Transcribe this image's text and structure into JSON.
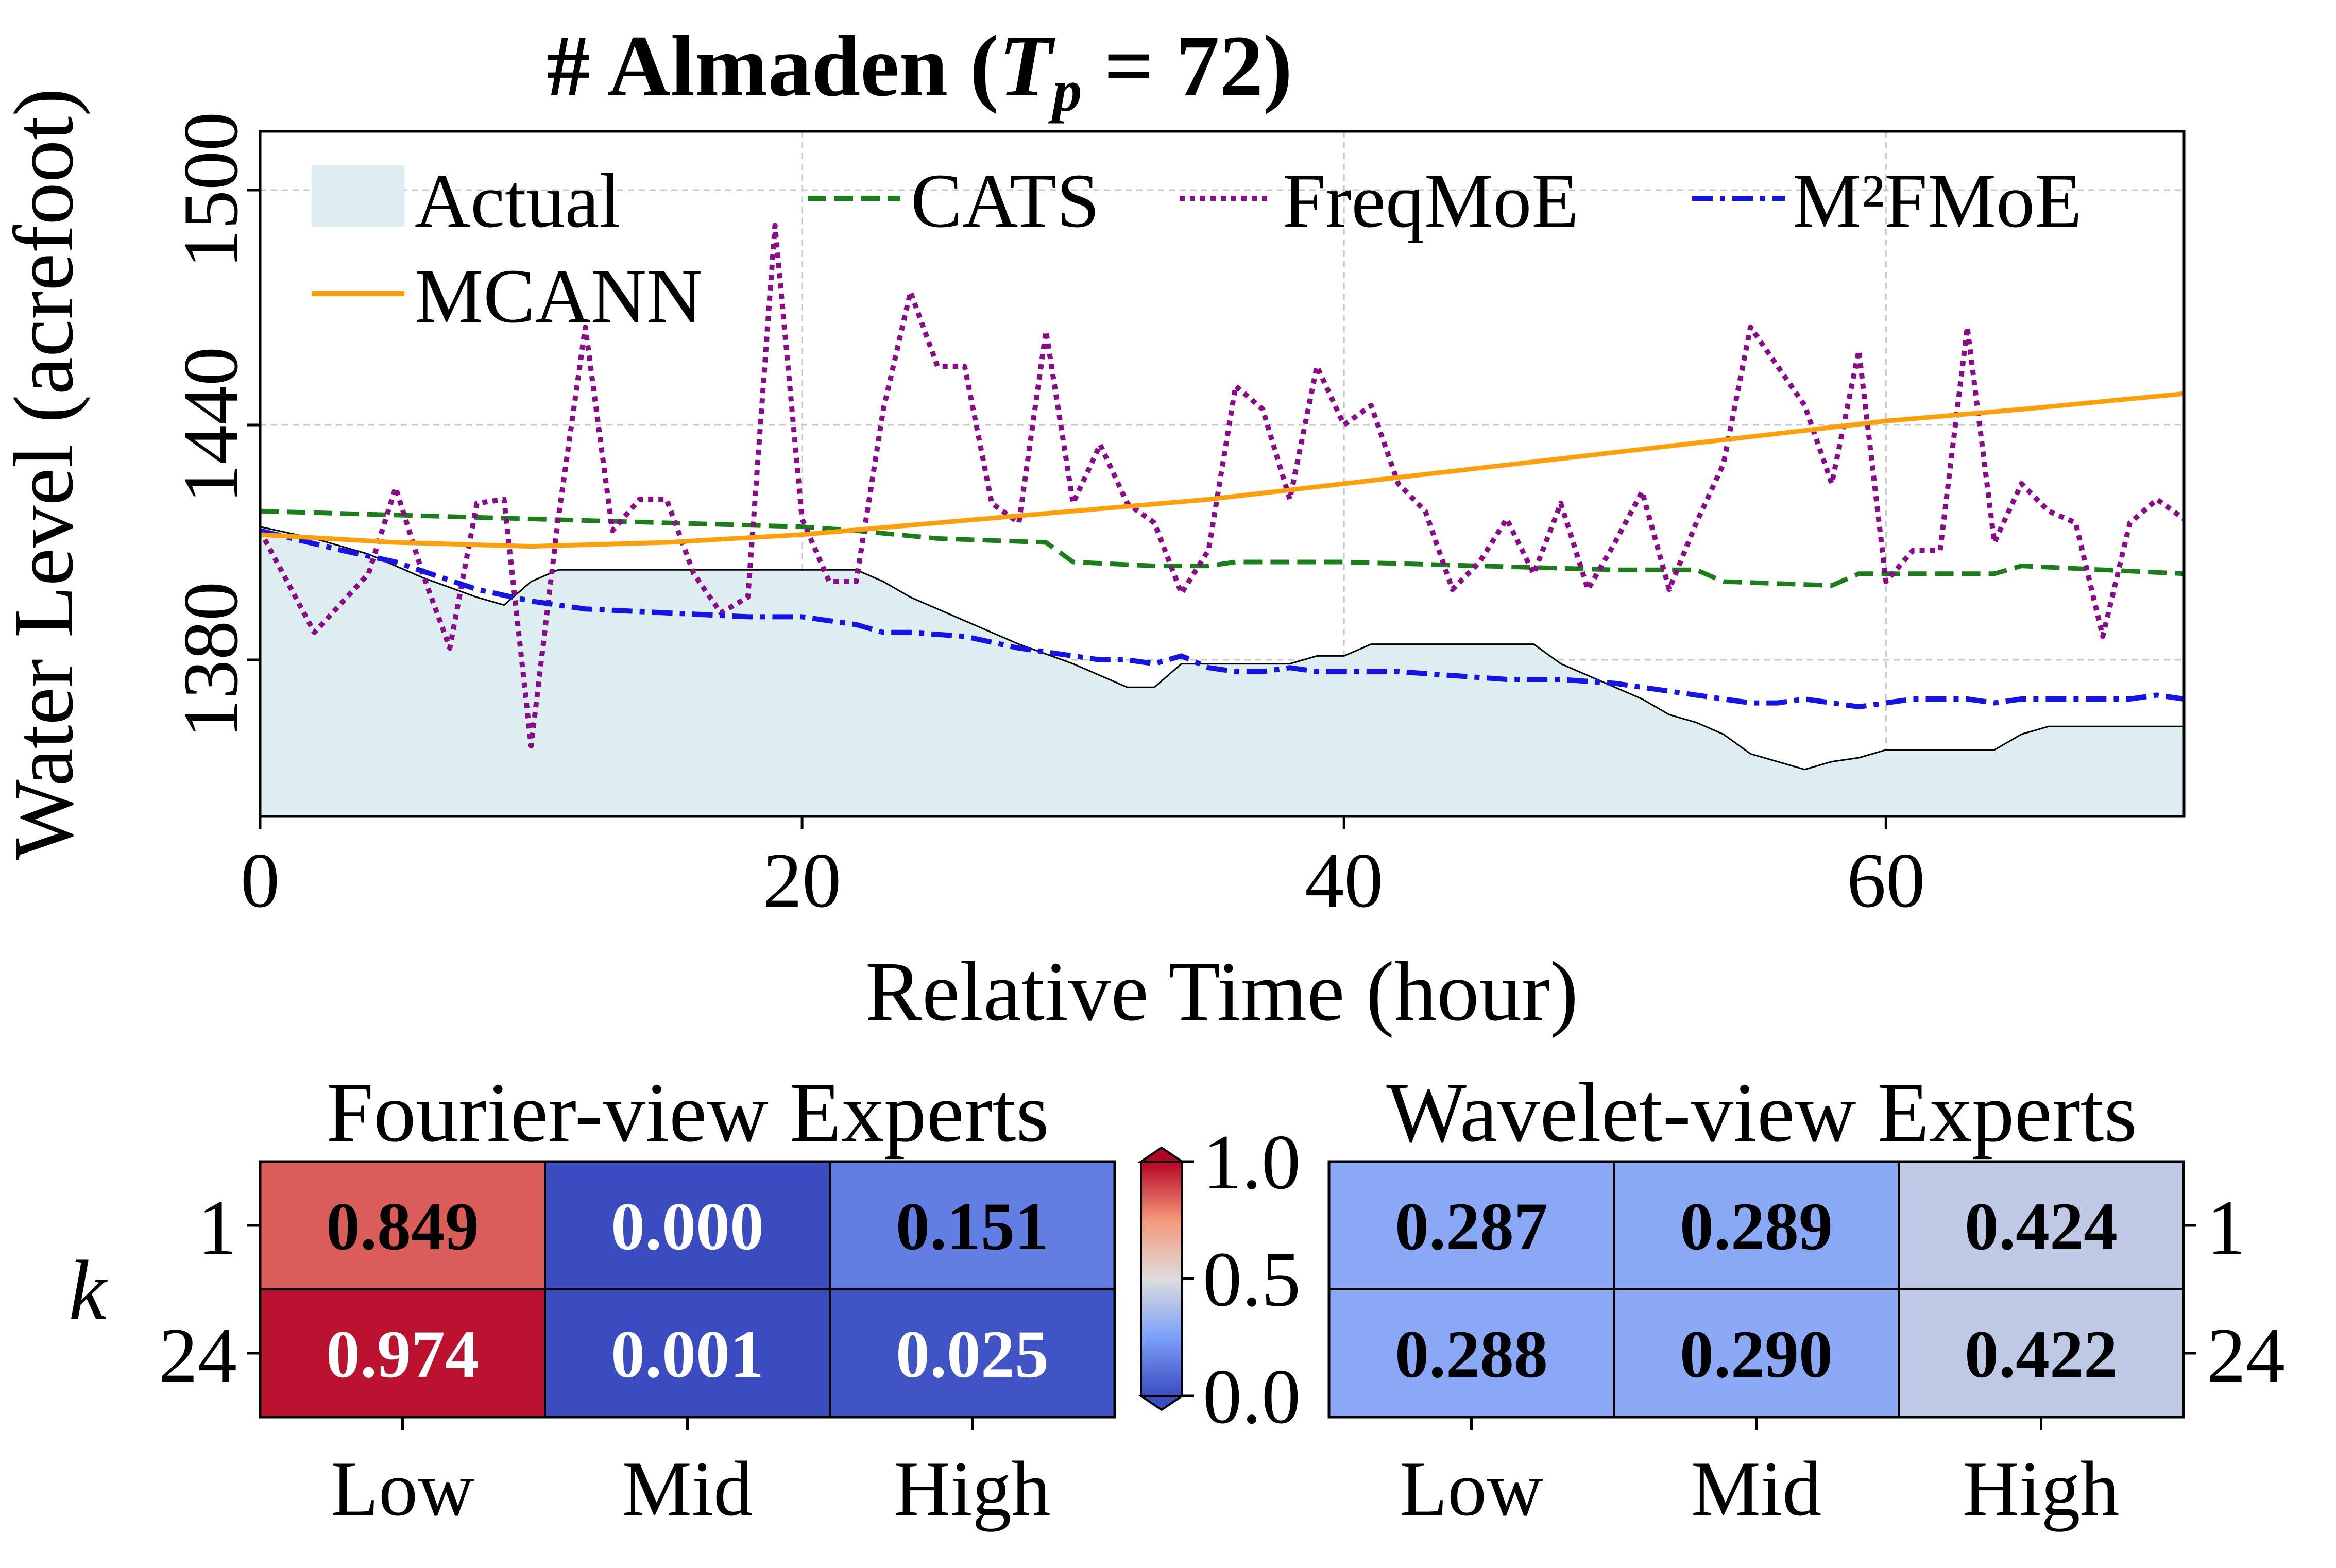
{
  "chart_data": [
    {
      "type": "line",
      "title_prefix": "# Almaden (",
      "title_var": "T",
      "title_sub": "p",
      "title_rest": " = 72)",
      "xlabel": "Relative Time (hour)",
      "ylabel": "Water Level (acrefoot)",
      "xlim": [
        0,
        71
      ],
      "ylim": [
        1340,
        1515
      ],
      "xticks": [
        0,
        20,
        40,
        60
      ],
      "yticks": [
        1380,
        1440,
        1500
      ],
      "grid": true,
      "legend_position": "top",
      "series": [
        {
          "name": "Actual",
          "style": "filled-area",
          "color": "#deedf0",
          "x": [
            0,
            2,
            4,
            6,
            8,
            9,
            10,
            11,
            12,
            14,
            16,
            18,
            20,
            22,
            23,
            24,
            26,
            28,
            30,
            32,
            33,
            34,
            35,
            36,
            37,
            38,
            39,
            40,
            41,
            42,
            44,
            46,
            47,
            48,
            49,
            50,
            51,
            52,
            53,
            54,
            55,
            56,
            57,
            58,
            59,
            60,
            61,
            62,
            63,
            64,
            65,
            66,
            68,
            70,
            71
          ],
          "y": [
            1414,
            1411,
            1407,
            1401,
            1396,
            1394,
            1400,
            1403,
            1403,
            1403,
            1403,
            1403,
            1403,
            1403,
            1400,
            1396,
            1390,
            1384,
            1379,
            1373,
            1373,
            1379,
            1379,
            1379,
            1379,
            1379,
            1381,
            1381,
            1384,
            1384,
            1384,
            1384,
            1384,
            1379,
            1376,
            1373,
            1370,
            1366,
            1364,
            1361,
            1356,
            1354,
            1352,
            1354,
            1355,
            1357,
            1357,
            1357,
            1357,
            1357,
            1361,
            1363,
            1363,
            1363,
            1363
          ]
        },
        {
          "name": "CATS",
          "style": "dashed",
          "color": "#1a7f1a",
          "x": [
            0,
            5,
            10,
            15,
            20,
            22,
            25,
            29,
            30,
            33,
            35,
            36,
            40,
            45,
            50,
            53,
            54,
            58,
            59,
            64,
            65,
            71
          ],
          "y": [
            1418,
            1417,
            1416,
            1415,
            1414,
            1413,
            1411,
            1410,
            1405,
            1404,
            1404,
            1405,
            1405,
            1404,
            1403,
            1403,
            1400,
            1399,
            1402,
            1402,
            1404,
            1402
          ]
        },
        {
          "name": "FreqMoE",
          "style": "dotted",
          "color": "#8b0a8b",
          "x": [
            0,
            2,
            4,
            5,
            6,
            7,
            8,
            9,
            10,
            11,
            12,
            13,
            14,
            15,
            16,
            17,
            18,
            19,
            20,
            21,
            22,
            23,
            24,
            25,
            26,
            27,
            28,
            29,
            30,
            31,
            32,
            33,
            34,
            35,
            36,
            37,
            38,
            39,
            40,
            41,
            42,
            43,
            44,
            45,
            46,
            47,
            48,
            49,
            50,
            51,
            52,
            53,
            54,
            55,
            56,
            57,
            58,
            59,
            60,
            61,
            62,
            63,
            64,
            65,
            66,
            67,
            68,
            69,
            70,
            71
          ],
          "y": [
            1413,
            1387,
            1402,
            1424,
            1402,
            1383,
            1420,
            1421,
            1358,
            1416,
            1465,
            1413,
            1421,
            1421,
            1402,
            1392,
            1396,
            1491,
            1416,
            1400,
            1400,
            1444,
            1474,
            1455,
            1455,
            1420,
            1415,
            1464,
            1420,
            1435,
            1420,
            1415,
            1397,
            1408,
            1450,
            1444,
            1421,
            1455,
            1440,
            1445,
            1425,
            1418,
            1398,
            1405,
            1416,
            1402,
            1420,
            1398,
            1410,
            1423,
            1398,
            1415,
            1430,
            1465,
            1455,
            1445,
            1425,
            1459,
            1400,
            1408,
            1408,
            1465,
            1410,
            1425,
            1418,
            1415,
            1386,
            1415,
            1421,
            1416
          ]
        },
        {
          "name": "M²FMoE",
          "style": "dash-dot",
          "color": "#1414e6",
          "x": [
            0,
            3,
            5,
            8,
            10,
            12,
            15,
            18,
            20,
            22,
            23,
            24,
            26,
            28,
            30,
            31,
            32,
            33,
            34,
            35,
            36,
            37,
            38,
            39,
            40,
            42,
            44,
            46,
            48,
            50,
            52,
            53,
            54,
            55,
            56,
            57,
            58,
            59,
            60,
            61,
            62,
            63,
            64,
            65,
            66,
            67,
            68,
            69,
            70,
            71
          ],
          "y": [
            1413,
            1408,
            1405,
            1398,
            1395,
            1393,
            1392,
            1391,
            1391,
            1389,
            1387,
            1387,
            1386,
            1383,
            1381,
            1380,
            1380,
            1379,
            1381,
            1378,
            1377,
            1377,
            1378,
            1377,
            1377,
            1377,
            1376,
            1375,
            1375,
            1374,
            1372,
            1371,
            1370,
            1369,
            1369,
            1370,
            1369,
            1368,
            1369,
            1370,
            1370,
            1370,
            1369,
            1370,
            1370,
            1370,
            1370,
            1370,
            1371,
            1370
          ]
        },
        {
          "name": "MCANN",
          "style": "solid",
          "color": "#ff9f0a",
          "x": [
            0,
            5,
            10,
            15,
            20,
            25,
            30,
            35,
            40,
            45,
            50,
            55,
            60,
            65,
            71
          ],
          "y": [
            1412,
            1410,
            1409,
            1410,
            1412,
            1415,
            1418,
            1421,
            1425,
            1429,
            1433,
            1437,
            1441,
            1444,
            1448
          ]
        }
      ]
    },
    {
      "type": "heatmap",
      "title": "Fourier-view Experts",
      "ylabel": "k",
      "xlabels": [
        "Low",
        "Mid",
        "High"
      ],
      "ylabels": [
        "1",
        "24"
      ],
      "values": [
        [
          0.849,
          0.0,
          0.151
        ],
        [
          0.974,
          0.001,
          0.025
        ]
      ],
      "colormap": "coolwarm",
      "vmin": 0.0,
      "vmax": 1.0
    },
    {
      "type": "heatmap",
      "title": "Wavelet-view Experts",
      "xlabels": [
        "Low",
        "Mid",
        "High"
      ],
      "ylabels": [
        "1",
        "24"
      ],
      "values": [
        [
          0.287,
          0.289,
          0.424
        ],
        [
          0.288,
          0.29,
          0.422
        ]
      ],
      "colormap": "coolwarm",
      "vmin": 0.0,
      "vmax": 1.0
    },
    {
      "type": "colorbar",
      "ticks": [
        "1.0",
        "0.5",
        "0.0"
      ]
    }
  ]
}
